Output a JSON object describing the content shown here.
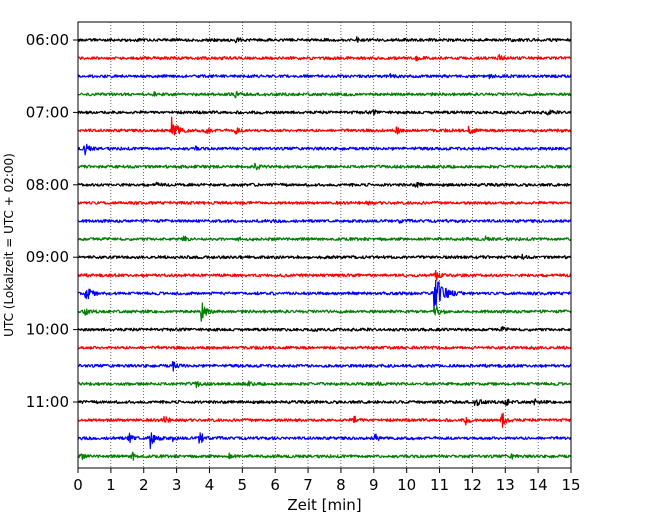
{
  "chart_data": {
    "type": "line",
    "title": "",
    "xlabel": "Zeit  [min]",
    "ylabel": "UTC (Lokalzeit = UTC + 02:00)",
    "xlim": [
      0,
      15
    ],
    "x_ticks": [
      "0",
      "1",
      "2",
      "3",
      "4",
      "5",
      "6",
      "7",
      "8",
      "9",
      "10",
      "11",
      "12",
      "13",
      "14",
      "15"
    ],
    "y_tick_labels": [
      "06:00",
      "07:00",
      "08:00",
      "09:00",
      "10:00",
      "11:00"
    ],
    "grid": "vertical dotted lines at each minute",
    "traces_per_hour": 4,
    "trace_start_utc": "06:00",
    "trace_color_cycle": [
      "#000000",
      "#ff0000",
      "#0000ff",
      "#008000"
    ],
    "traces": [
      {
        "start": "06:00",
        "color": "#000000",
        "events": [
          {
            "t": 8.5,
            "amp": 0.3
          },
          {
            "t": 4.8,
            "amp": 0.25
          }
        ]
      },
      {
        "start": "06:15",
        "color": "#ff0000",
        "events": [
          {
            "t": 12.8,
            "amp": 0.35
          },
          {
            "t": 10.3,
            "amp": 0.25
          }
        ]
      },
      {
        "start": "06:30",
        "color": "#0000ff",
        "events": [
          {
            "t": 12.5,
            "amp": 0.3
          },
          {
            "t": 9.5,
            "amp": 0.2
          }
        ]
      },
      {
        "start": "06:45",
        "color": "#008000",
        "events": [
          {
            "t": 4.8,
            "amp": 0.3
          },
          {
            "t": 8.2,
            "amp": 0.25
          },
          {
            "t": 2.3,
            "amp": 0.2
          }
        ]
      },
      {
        "start": "07:00",
        "color": "#000000",
        "events": [
          {
            "t": 14.3,
            "amp": 0.3
          },
          {
            "t": 9.0,
            "amp": 0.2
          }
        ]
      },
      {
        "start": "07:15",
        "color": "#ff0000",
        "events": [
          {
            "t": 2.85,
            "amp": 1.6
          },
          {
            "t": 3.9,
            "amp": 0.5
          },
          {
            "t": 4.8,
            "amp": 0.4
          },
          {
            "t": 11.9,
            "amp": 0.6
          },
          {
            "t": 9.7,
            "amp": 0.35
          }
        ]
      },
      {
        "start": "07:30",
        "color": "#0000ff",
        "events": [
          {
            "t": 0.2,
            "amp": 0.7
          },
          {
            "t": 3.6,
            "amp": 0.2
          }
        ]
      },
      {
        "start": "07:45",
        "color": "#008000",
        "events": [
          {
            "t": 5.4,
            "amp": 0.45
          }
        ]
      },
      {
        "start": "08:00",
        "color": "#000000",
        "events": [
          {
            "t": 10.3,
            "amp": 0.35
          },
          {
            "t": 2.4,
            "amp": 0.2
          }
        ]
      },
      {
        "start": "08:15",
        "color": "#ff0000",
        "events": [
          {
            "t": 8.8,
            "amp": 0.2
          }
        ]
      },
      {
        "start": "08:30",
        "color": "#0000ff",
        "events": [
          {
            "t": 9.8,
            "amp": 0.2
          }
        ]
      },
      {
        "start": "08:45",
        "color": "#008000",
        "events": [
          {
            "t": 3.2,
            "amp": 0.4
          },
          {
            "t": 4.9,
            "amp": 0.25
          },
          {
            "t": 12.4,
            "amp": 0.2
          }
        ]
      },
      {
        "start": "09:00",
        "color": "#000000",
        "events": [
          {
            "t": 13.5,
            "amp": 0.2
          }
        ]
      },
      {
        "start": "09:15",
        "color": "#ff0000",
        "events": [
          {
            "t": 10.85,
            "amp": 0.9
          },
          {
            "t": 15.0,
            "amp": 0.3
          }
        ]
      },
      {
        "start": "09:30",
        "color": "#0000ff",
        "events": [
          {
            "t": 10.85,
            "amp": 2.8
          },
          {
            "t": 0.25,
            "amp": 1.0
          }
        ]
      },
      {
        "start": "09:45",
        "color": "#008000",
        "events": [
          {
            "t": 3.75,
            "amp": 1.1
          },
          {
            "t": 10.85,
            "amp": 0.9
          },
          {
            "t": 0.2,
            "amp": 0.4
          }
        ]
      },
      {
        "start": "10:00",
        "color": "#000000",
        "events": [
          {
            "t": 12.9,
            "amp": 0.3
          }
        ]
      },
      {
        "start": "10:15",
        "color": "#ff0000",
        "events": [
          {
            "t": 13.8,
            "amp": 0.15
          }
        ]
      },
      {
        "start": "10:30",
        "color": "#0000ff",
        "events": [
          {
            "t": 2.9,
            "amp": 0.5
          }
        ]
      },
      {
        "start": "10:45",
        "color": "#008000",
        "events": [
          {
            "t": 3.6,
            "amp": 0.35
          },
          {
            "t": 5.2,
            "amp": 0.2
          },
          {
            "t": 9.1,
            "amp": 0.2
          }
        ]
      },
      {
        "start": "11:00",
        "color": "#000000",
        "events": [
          {
            "t": 12.1,
            "amp": 0.7
          },
          {
            "t": 13.0,
            "amp": 0.5
          },
          {
            "t": 13.9,
            "amp": 0.3
          }
        ]
      },
      {
        "start": "11:15",
        "color": "#ff0000",
        "events": [
          {
            "t": 2.6,
            "amp": 0.6
          },
          {
            "t": 8.4,
            "amp": 0.5
          },
          {
            "t": 12.9,
            "amp": 0.9
          },
          {
            "t": 11.8,
            "amp": 0.4
          }
        ]
      },
      {
        "start": "11:30",
        "color": "#0000ff",
        "events": [
          {
            "t": 2.2,
            "amp": 1.1
          },
          {
            "t": 1.55,
            "amp": 0.6
          },
          {
            "t": 3.7,
            "amp": 0.8
          },
          {
            "t": 9.05,
            "amp": 0.5
          },
          {
            "t": 2.9,
            "amp": 0.3
          }
        ]
      },
      {
        "start": "11:45",
        "color": "#008000",
        "events": [
          {
            "t": 1.65,
            "amp": 0.5
          },
          {
            "t": 0.1,
            "amp": 0.3
          },
          {
            "t": 4.6,
            "amp": 0.25
          },
          {
            "t": 13.2,
            "amp": 0.25
          }
        ]
      }
    ]
  }
}
